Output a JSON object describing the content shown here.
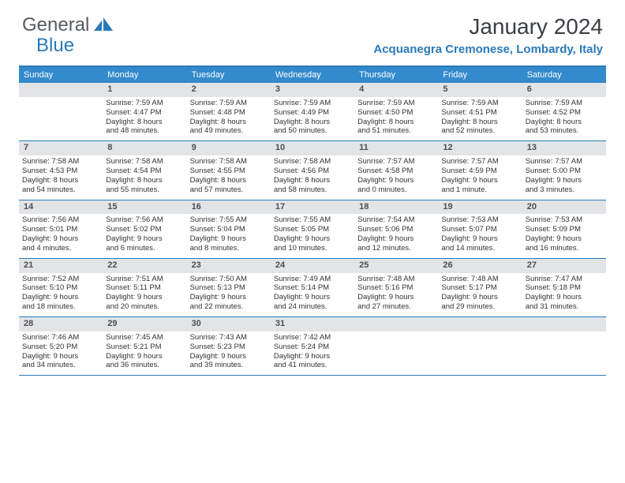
{
  "logo": {
    "gray": "General",
    "blue": "Blue"
  },
  "title": "January 2024",
  "location": "Acquanegra Cremonese, Lombardy, Italy",
  "colors": {
    "brand": "#2a7ab9",
    "header_band": "#338acc",
    "daynum_band": "#e2e4e6",
    "text": "#333333",
    "title_text": "#3a3f45",
    "logo_gray": "#555b61"
  },
  "weekdays": [
    "Sunday",
    "Monday",
    "Tuesday",
    "Wednesday",
    "Thursday",
    "Friday",
    "Saturday"
  ],
  "weeks": [
    [
      {
        "n": "",
        "l": []
      },
      {
        "n": "1",
        "l": [
          "Sunrise: 7:59 AM",
          "Sunset: 4:47 PM",
          "Daylight: 8 hours",
          "and 48 minutes."
        ]
      },
      {
        "n": "2",
        "l": [
          "Sunrise: 7:59 AM",
          "Sunset: 4:48 PM",
          "Daylight: 8 hours",
          "and 49 minutes."
        ]
      },
      {
        "n": "3",
        "l": [
          "Sunrise: 7:59 AM",
          "Sunset: 4:49 PM",
          "Daylight: 8 hours",
          "and 50 minutes."
        ]
      },
      {
        "n": "4",
        "l": [
          "Sunrise: 7:59 AM",
          "Sunset: 4:50 PM",
          "Daylight: 8 hours",
          "and 51 minutes."
        ]
      },
      {
        "n": "5",
        "l": [
          "Sunrise: 7:59 AM",
          "Sunset: 4:51 PM",
          "Daylight: 8 hours",
          "and 52 minutes."
        ]
      },
      {
        "n": "6",
        "l": [
          "Sunrise: 7:59 AM",
          "Sunset: 4:52 PM",
          "Daylight: 8 hours",
          "and 53 minutes."
        ]
      }
    ],
    [
      {
        "n": "7",
        "l": [
          "Sunrise: 7:58 AM",
          "Sunset: 4:53 PM",
          "Daylight: 8 hours",
          "and 54 minutes."
        ]
      },
      {
        "n": "8",
        "l": [
          "Sunrise: 7:58 AM",
          "Sunset: 4:54 PM",
          "Daylight: 8 hours",
          "and 55 minutes."
        ]
      },
      {
        "n": "9",
        "l": [
          "Sunrise: 7:58 AM",
          "Sunset: 4:55 PM",
          "Daylight: 8 hours",
          "and 57 minutes."
        ]
      },
      {
        "n": "10",
        "l": [
          "Sunrise: 7:58 AM",
          "Sunset: 4:56 PM",
          "Daylight: 8 hours",
          "and 58 minutes."
        ]
      },
      {
        "n": "11",
        "l": [
          "Sunrise: 7:57 AM",
          "Sunset: 4:58 PM",
          "Daylight: 9 hours",
          "and 0 minutes."
        ]
      },
      {
        "n": "12",
        "l": [
          "Sunrise: 7:57 AM",
          "Sunset: 4:59 PM",
          "Daylight: 9 hours",
          "and 1 minute."
        ]
      },
      {
        "n": "13",
        "l": [
          "Sunrise: 7:57 AM",
          "Sunset: 5:00 PM",
          "Daylight: 9 hours",
          "and 3 minutes."
        ]
      }
    ],
    [
      {
        "n": "14",
        "l": [
          "Sunrise: 7:56 AM",
          "Sunset: 5:01 PM",
          "Daylight: 9 hours",
          "and 4 minutes."
        ]
      },
      {
        "n": "15",
        "l": [
          "Sunrise: 7:56 AM",
          "Sunset: 5:02 PM",
          "Daylight: 9 hours",
          "and 6 minutes."
        ]
      },
      {
        "n": "16",
        "l": [
          "Sunrise: 7:55 AM",
          "Sunset: 5:04 PM",
          "Daylight: 9 hours",
          "and 8 minutes."
        ]
      },
      {
        "n": "17",
        "l": [
          "Sunrise: 7:55 AM",
          "Sunset: 5:05 PM",
          "Daylight: 9 hours",
          "and 10 minutes."
        ]
      },
      {
        "n": "18",
        "l": [
          "Sunrise: 7:54 AM",
          "Sunset: 5:06 PM",
          "Daylight: 9 hours",
          "and 12 minutes."
        ]
      },
      {
        "n": "19",
        "l": [
          "Sunrise: 7:53 AM",
          "Sunset: 5:07 PM",
          "Daylight: 9 hours",
          "and 14 minutes."
        ]
      },
      {
        "n": "20",
        "l": [
          "Sunrise: 7:53 AM",
          "Sunset: 5:09 PM",
          "Daylight: 9 hours",
          "and 16 minutes."
        ]
      }
    ],
    [
      {
        "n": "21",
        "l": [
          "Sunrise: 7:52 AM",
          "Sunset: 5:10 PM",
          "Daylight: 9 hours",
          "and 18 minutes."
        ]
      },
      {
        "n": "22",
        "l": [
          "Sunrise: 7:51 AM",
          "Sunset: 5:11 PM",
          "Daylight: 9 hours",
          "and 20 minutes."
        ]
      },
      {
        "n": "23",
        "l": [
          "Sunrise: 7:50 AM",
          "Sunset: 5:13 PM",
          "Daylight: 9 hours",
          "and 22 minutes."
        ]
      },
      {
        "n": "24",
        "l": [
          "Sunrise: 7:49 AM",
          "Sunset: 5:14 PM",
          "Daylight: 9 hours",
          "and 24 minutes."
        ]
      },
      {
        "n": "25",
        "l": [
          "Sunrise: 7:48 AM",
          "Sunset: 5:16 PM",
          "Daylight: 9 hours",
          "and 27 minutes."
        ]
      },
      {
        "n": "26",
        "l": [
          "Sunrise: 7:48 AM",
          "Sunset: 5:17 PM",
          "Daylight: 9 hours",
          "and 29 minutes."
        ]
      },
      {
        "n": "27",
        "l": [
          "Sunrise: 7:47 AM",
          "Sunset: 5:18 PM",
          "Daylight: 9 hours",
          "and 31 minutes."
        ]
      }
    ],
    [
      {
        "n": "28",
        "l": [
          "Sunrise: 7:46 AM",
          "Sunset: 5:20 PM",
          "Daylight: 9 hours",
          "and 34 minutes."
        ]
      },
      {
        "n": "29",
        "l": [
          "Sunrise: 7:45 AM",
          "Sunset: 5:21 PM",
          "Daylight: 9 hours",
          "and 36 minutes."
        ]
      },
      {
        "n": "30",
        "l": [
          "Sunrise: 7:43 AM",
          "Sunset: 5:23 PM",
          "Daylight: 9 hours",
          "and 39 minutes."
        ]
      },
      {
        "n": "31",
        "l": [
          "Sunrise: 7:42 AM",
          "Sunset: 5:24 PM",
          "Daylight: 9 hours",
          "and 41 minutes."
        ]
      },
      {
        "n": "",
        "l": []
      },
      {
        "n": "",
        "l": []
      },
      {
        "n": "",
        "l": []
      }
    ]
  ]
}
